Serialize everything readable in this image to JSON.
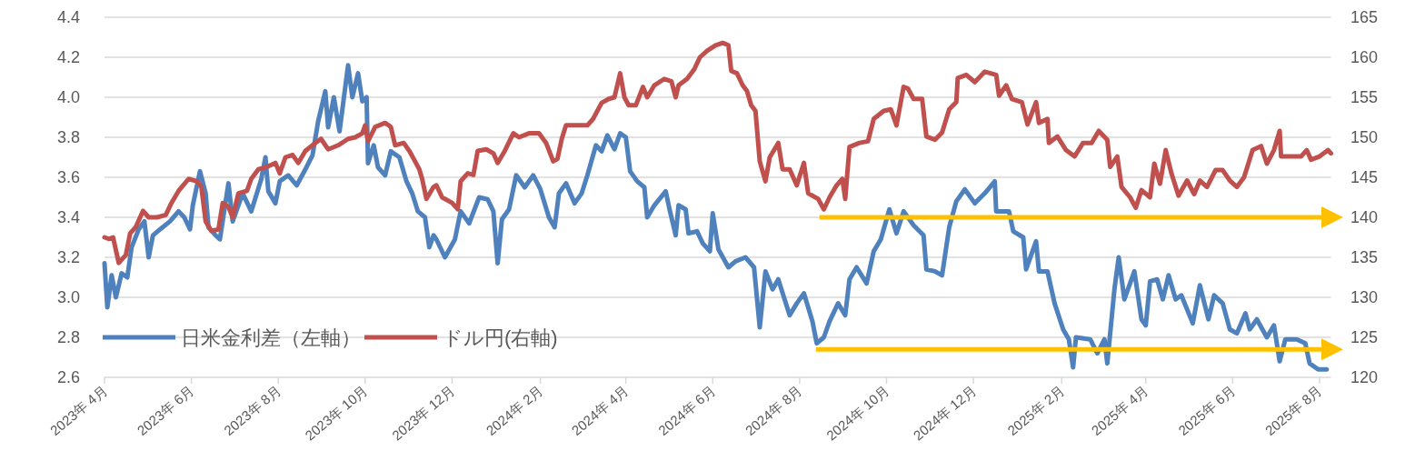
{
  "chart_data": {
    "type": "line",
    "legend": "bottom left",
    "grid": "y",
    "xlim": [
      "2023-04-01",
      "2025-08-09"
    ],
    "xticks": [
      {
        "value": "2023-04",
        "label": "2023年 4月"
      },
      {
        "value": "2023-06",
        "label": "2023年 6月"
      },
      {
        "value": "2023-08",
        "label": "2023年 8月"
      },
      {
        "value": "2023-10",
        "label": "2023年 10月"
      },
      {
        "value": "2023-12",
        "label": "2023年 12月"
      },
      {
        "value": "2024-02",
        "label": "2024年 2月"
      },
      {
        "value": "2024-04",
        "label": "2024年 4月"
      },
      {
        "value": "2024-06",
        "label": "2024年 6月"
      },
      {
        "value": "2024-08",
        "label": "2024年 8月"
      },
      {
        "value": "2024-10",
        "label": "2024年 10月"
      },
      {
        "value": "2024-12",
        "label": "2024年 12月"
      },
      {
        "value": "2025-02",
        "label": "2025年 2月"
      },
      {
        "value": "2025-04",
        "label": "2025年 4月"
      },
      {
        "value": "2025-06",
        "label": "2025年 6月"
      },
      {
        "value": "2025-08",
        "label": "2025年 8月"
      }
    ],
    "ylim": [
      2.6,
      4.4
    ],
    "yticks": [
      2.6,
      2.8,
      {
        "value": 3,
        "label": "3.0"
      },
      3.2,
      3.4,
      3.6,
      3.8,
      {
        "value": 4,
        "label": "4.0"
      },
      4.2,
      4.4
    ],
    "y2lim": [
      120,
      165
    ],
    "y2ticks": [
      120,
      125,
      130,
      135,
      140,
      145,
      150,
      155,
      160,
      165
    ],
    "ref_lines": [
      {
        "axis": "y2",
        "value": 140,
        "color": "#ffc000"
      },
      {
        "axis": "y2",
        "value": 123.5,
        "color": "#ffc000"
      }
    ],
    "series": [
      {
        "name": "日米金利差（左軸）",
        "color": "#4f81bd",
        "x": [
          "2023-04-01",
          "2023-04-03",
          "2023-04-06",
          "2023-04-09",
          "2023-04-13",
          "2023-04-17",
          "2023-04-20",
          "2023-04-25",
          "2023-04-29",
          "2023-05-02",
          "2023-05-05",
          "2023-05-10",
          "2023-05-17",
          "2023-05-23",
          "2023-05-27",
          "2023-05-31",
          "2023-06-02",
          "2023-06-07",
          "2023-06-11",
          "2023-06-13",
          "2023-06-18",
          "2023-06-21",
          "2023-06-27",
          "2023-06-30",
          "2023-07-07",
          "2023-07-13",
          "2023-07-20",
          "2023-07-23",
          "2023-07-25",
          "2023-07-30",
          "2023-08-02",
          "2023-08-08",
          "2023-08-14",
          "2023-08-20",
          "2023-08-25",
          "2023-08-29",
          "2023-09-03",
          "2023-09-05",
          "2023-09-09",
          "2023-09-13",
          "2023-09-19",
          "2023-09-22",
          "2023-09-26",
          "2023-09-29",
          "2023-10-02",
          "2023-10-03",
          "2023-10-07",
          "2023-10-10",
          "2023-10-15",
          "2023-10-19",
          "2023-10-25",
          "2023-10-30",
          "2023-11-03",
          "2023-11-07",
          "2023-11-12",
          "2023-11-15",
          "2023-11-18",
          "2023-11-20",
          "2023-11-26",
          "2023-12-03",
          "2023-12-07",
          "2023-12-13",
          "2023-12-20",
          "2023-12-26",
          "2023-12-30",
          "2024-01-02",
          "2024-01-05",
          "2024-01-10",
          "2024-01-15",
          "2024-01-21",
          "2024-01-27",
          "2024-02-01",
          "2024-02-07",
          "2024-02-11",
          "2024-02-14",
          "2024-02-19",
          "2024-02-25",
          "2024-03-01",
          "2024-03-05",
          "2024-03-11",
          "2024-03-15",
          "2024-03-19",
          "2024-03-24",
          "2024-03-28",
          "2024-04-01",
          "2024-04-04",
          "2024-04-09",
          "2024-04-14",
          "2024-04-16",
          "2024-04-21",
          "2024-04-29",
          "2024-05-02",
          "2024-05-06",
          "2024-05-08",
          "2024-05-13",
          "2024-05-15",
          "2024-05-21",
          "2024-05-25",
          "2024-05-30",
          "2024-06-01",
          "2024-06-05",
          "2024-06-12",
          "2024-06-17",
          "2024-06-24",
          "2024-06-30",
          "2024-07-04",
          "2024-07-08",
          "2024-07-13",
          "2024-07-17",
          "2024-07-25",
          "2024-07-30",
          "2024-08-04",
          "2024-08-10",
          "2024-08-13",
          "2024-08-18",
          "2024-08-22",
          "2024-08-28",
          "2024-09-02",
          "2024-09-05",
          "2024-09-10",
          "2024-09-17",
          "2024-09-22",
          "2024-09-27",
          "2024-10-03",
          "2024-10-08",
          "2024-10-13",
          "2024-10-20",
          "2024-10-27",
          "2024-10-29",
          "2024-11-04",
          "2024-11-09",
          "2024-11-14",
          "2024-11-19",
          "2024-11-25",
          "2024-12-02",
          "2024-12-09",
          "2024-12-16",
          "2024-12-17",
          "2024-12-26",
          "2024-12-29",
          "2025-01-05",
          "2025-01-07",
          "2025-01-14",
          "2025-01-16",
          "2025-01-22",
          "2025-01-27",
          "2025-02-02",
          "2025-02-06",
          "2025-02-09",
          "2025-02-11",
          "2025-02-21",
          "2025-02-26",
          "2025-03-03",
          "2025-03-05",
          "2025-03-10",
          "2025-03-13",
          "2025-03-17",
          "2025-03-24",
          "2025-03-29",
          "2025-04-01",
          "2025-04-04",
          "2025-04-09",
          "2025-04-13",
          "2025-04-17",
          "2025-04-22",
          "2025-04-26",
          "2025-05-04",
          "2025-05-09",
          "2025-05-15",
          "2025-05-19",
          "2025-05-25",
          "2025-05-30",
          "2025-06-04",
          "2025-06-10",
          "2025-06-13",
          "2025-06-18",
          "2025-06-25",
          "2025-06-30",
          "2025-07-04",
          "2025-07-08",
          "2025-07-16",
          "2025-07-22",
          "2025-07-25",
          "2025-07-31",
          "2025-08-06"
        ],
        "values": [
          3.17,
          2.95,
          3.11,
          3.0,
          3.12,
          3.1,
          3.25,
          3.34,
          3.38,
          3.2,
          3.31,
          3.34,
          3.38,
          3.43,
          3.4,
          3.34,
          3.46,
          3.63,
          3.52,
          3.35,
          3.31,
          3.29,
          3.57,
          3.38,
          3.52,
          3.43,
          3.59,
          3.7,
          3.53,
          3.47,
          3.58,
          3.61,
          3.56,
          3.64,
          3.71,
          3.88,
          4.03,
          3.85,
          4.0,
          3.83,
          4.16,
          4.0,
          4.12,
          3.98,
          4.0,
          3.67,
          3.76,
          3.65,
          3.61,
          3.73,
          3.7,
          3.58,
          3.52,
          3.43,
          3.4,
          3.25,
          3.31,
          3.29,
          3.2,
          3.29,
          3.43,
          3.37,
          3.5,
          3.49,
          3.43,
          3.17,
          3.39,
          3.44,
          3.61,
          3.55,
          3.61,
          3.54,
          3.4,
          3.35,
          3.52,
          3.57,
          3.47,
          3.52,
          3.61,
          3.76,
          3.73,
          3.81,
          3.74,
          3.82,
          3.8,
          3.63,
          3.58,
          3.55,
          3.4,
          3.46,
          3.53,
          3.43,
          3.31,
          3.46,
          3.44,
          3.32,
          3.33,
          3.27,
          3.23,
          3.42,
          3.24,
          3.15,
          3.18,
          3.2,
          3.15,
          2.85,
          3.13,
          3.04,
          3.09,
          2.91,
          2.97,
          3.02,
          2.88,
          2.77,
          2.8,
          2.88,
          2.97,
          2.91,
          3.09,
          3.15,
          3.07,
          3.23,
          3.29,
          3.44,
          3.32,
          3.43,
          3.36,
          3.31,
          3.14,
          3.13,
          3.11,
          3.35,
          3.48,
          3.54,
          3.47,
          3.52,
          3.58,
          3.43,
          3.43,
          3.33,
          3.3,
          3.14,
          3.28,
          3.13,
          3.13,
          2.97,
          2.84,
          2.79,
          2.65,
          2.8,
          2.79,
          2.72,
          2.79,
          2.67,
          3.04,
          3.2,
          2.99,
          3.13,
          2.89,
          2.86,
          3.08,
          3.09,
          2.99,
          3.11,
          2.99,
          3.01,
          2.87,
          3.06,
          2.89,
          3.01,
          2.97,
          2.84,
          2.82,
          2.92,
          2.84,
          2.89,
          2.8,
          2.86,
          2.68,
          2.79,
          2.79,
          2.77,
          2.67,
          2.64,
          2.64
        ]
      },
      {
        "name": "ドル円(右軸)",
        "color": "#c0504d",
        "axis": "y2",
        "x": [
          "2023-04-01",
          "2023-04-04",
          "2023-04-07",
          "2023-04-11",
          "2023-04-16",
          "2023-04-19",
          "2023-04-23",
          "2023-04-28",
          "2023-05-02",
          "2023-05-08",
          "2023-05-14",
          "2023-05-18",
          "2023-05-23",
          "2023-05-30",
          "2023-06-05",
          "2023-06-08",
          "2023-06-11",
          "2023-06-15",
          "2023-06-20",
          "2023-06-23",
          "2023-06-27",
          "2023-06-30",
          "2023-07-04",
          "2023-07-10",
          "2023-07-13",
          "2023-07-18",
          "2023-07-24",
          "2023-07-30",
          "2023-08-02",
          "2023-08-06",
          "2023-08-11",
          "2023-08-15",
          "2023-08-20",
          "2023-08-27",
          "2023-08-31",
          "2023-09-05",
          "2023-09-12",
          "2023-09-19",
          "2023-09-24",
          "2023-09-29",
          "2023-10-01",
          "2023-10-03",
          "2023-10-08",
          "2023-10-15",
          "2023-10-19",
          "2023-10-22",
          "2023-10-28",
          "2023-11-01",
          "2023-11-05",
          "2023-11-08",
          "2023-11-10",
          "2023-11-13",
          "2023-11-18",
          "2023-11-20",
          "2023-11-24",
          "2023-12-01",
          "2023-12-05",
          "2023-12-07",
          "2023-12-12",
          "2023-12-16",
          "2023-12-19",
          "2023-12-25",
          "2023-12-30",
          "2024-01-02",
          "2024-01-07",
          "2024-01-13",
          "2024-01-17",
          "2024-01-24",
          "2024-01-31",
          "2024-02-05",
          "2024-02-10",
          "2024-02-13",
          "2024-02-16",
          "2024-02-19",
          "2024-02-27",
          "2024-03-05",
          "2024-03-09",
          "2024-03-15",
          "2024-03-20",
          "2024-03-24",
          "2024-03-28",
          "2024-03-31",
          "2024-04-03",
          "2024-04-08",
          "2024-04-13",
          "2024-04-16",
          "2024-04-21",
          "2024-04-28",
          "2024-05-03",
          "2024-05-06",
          "2024-05-08",
          "2024-05-14",
          "2024-05-19",
          "2024-05-23",
          "2024-05-28",
          "2024-06-03",
          "2024-06-08",
          "2024-06-12",
          "2024-06-14",
          "2024-06-18",
          "2024-06-22",
          "2024-06-25",
          "2024-06-28",
          "2024-07-01",
          "2024-07-04",
          "2024-07-08",
          "2024-07-11",
          "2024-07-17",
          "2024-07-20",
          "2024-07-25",
          "2024-07-30",
          "2024-08-04",
          "2024-08-07",
          "2024-08-14",
          "2024-08-18",
          "2024-08-22",
          "2024-08-27",
          "2024-08-31",
          "2024-09-02",
          "2024-09-05",
          "2024-09-12",
          "2024-09-18",
          "2024-09-22",
          "2024-09-29",
          "2024-10-04",
          "2024-10-08",
          "2024-10-13",
          "2024-10-16",
          "2024-10-20",
          "2024-10-26",
          "2024-10-29",
          "2024-11-04",
          "2024-11-09",
          "2024-11-14",
          "2024-11-19",
          "2024-11-20",
          "2024-11-26",
          "2024-12-02",
          "2024-12-09",
          "2024-12-17",
          "2024-12-19",
          "2024-12-24",
          "2024-12-28",
          "2025-01-04",
          "2025-01-08",
          "2025-01-14",
          "2025-01-16",
          "2025-01-22",
          "2025-01-23",
          "2025-01-29",
          "2025-02-04",
          "2025-02-10",
          "2025-02-16",
          "2025-02-22",
          "2025-02-27",
          "2025-03-05",
          "2025-03-07",
          "2025-03-12",
          "2025-03-15",
          "2025-03-21",
          "2025-03-25",
          "2025-03-29",
          "2025-04-04",
          "2025-04-07",
          "2025-04-11",
          "2025-04-15",
          "2025-04-19",
          "2025-04-24",
          "2025-04-30",
          "2025-05-05",
          "2025-05-09",
          "2025-05-14",
          "2025-05-20",
          "2025-05-25",
          "2025-05-30",
          "2025-06-04",
          "2025-06-09",
          "2025-06-15",
          "2025-06-21",
          "2025-06-25",
          "2025-06-30",
          "2025-07-04",
          "2025-07-05",
          "2025-07-12",
          "2025-07-19",
          "2025-07-23",
          "2025-07-26",
          "2025-08-01",
          "2025-08-07",
          "2025-08-09"
        ],
        "values": [
          137.5,
          137.3,
          137.5,
          134.3,
          135.3,
          138.0,
          138.8,
          140.8,
          140.0,
          140.0,
          140.3,
          141.8,
          143.3,
          144.8,
          144.5,
          143.8,
          139.5,
          138.3,
          138.5,
          141.8,
          141.3,
          140.0,
          143.0,
          143.3,
          144.8,
          146.0,
          146.3,
          146.8,
          145.5,
          147.5,
          147.8,
          146.8,
          148.3,
          149.3,
          149.8,
          148.5,
          149.0,
          149.8,
          150.0,
          150.5,
          151.5,
          149.5,
          151.3,
          151.8,
          151.3,
          149.0,
          149.3,
          148.3,
          147.0,
          146.0,
          144.8,
          142.3,
          143.8,
          144.0,
          142.5,
          141.8,
          141.0,
          144.5,
          145.5,
          145.3,
          148.3,
          148.5,
          148.0,
          146.8,
          148.3,
          150.5,
          150.0,
          150.5,
          150.5,
          149.3,
          147.0,
          147.3,
          149.8,
          151.5,
          151.5,
          151.5,
          152.3,
          154.3,
          154.8,
          155.0,
          158.0,
          155.0,
          154.0,
          154.0,
          156.3,
          155.0,
          156.5,
          157.3,
          157.0,
          155.0,
          156.5,
          157.3,
          158.5,
          160.0,
          160.8,
          161.5,
          161.8,
          161.5,
          158.3,
          158.0,
          156.5,
          155.8,
          154.0,
          153.3,
          147.0,
          144.5,
          147.5,
          149.3,
          146.0,
          146.0,
          144.0,
          146.8,
          143.0,
          142.3,
          141.0,
          142.5,
          144.0,
          144.8,
          142.3,
          148.8,
          149.3,
          149.5,
          152.3,
          153.3,
          153.5,
          151.5,
          156.3,
          156.1,
          154.8,
          154.8,
          150.1,
          149.7,
          150.6,
          153.5,
          154.4,
          157.4,
          157.8,
          156.9,
          158.2,
          157.8,
          155.2,
          156.5,
          154.8,
          154.4,
          151.6,
          154.4,
          151.8,
          152.3,
          149.3,
          150.1,
          148.4,
          147.6,
          149.3,
          149.3,
          150.8,
          149.7,
          146.3,
          147.6,
          143.8,
          142.5,
          141.2,
          143.4,
          142.5,
          146.7,
          144.2,
          148.4,
          145.5,
          142.7,
          144.6,
          142.9,
          144.6,
          143.8,
          145.9,
          145.9,
          144.6,
          143.8,
          145.0,
          148.4,
          148.9,
          146.7,
          148.4,
          150.8,
          147.6,
          147.6,
          147.6,
          148.4,
          147.2,
          147.6,
          148.4,
          148.0
        ]
      }
    ]
  }
}
